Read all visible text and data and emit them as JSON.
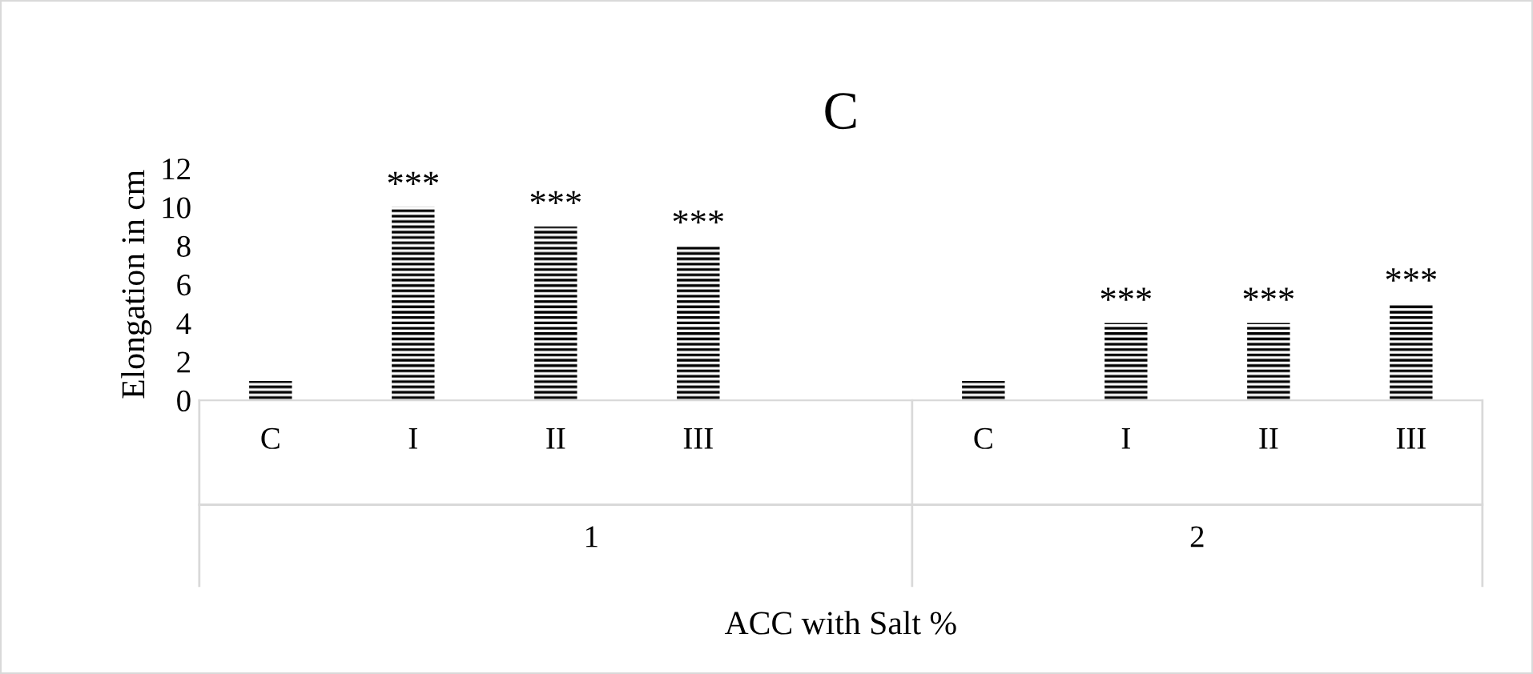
{
  "chart_data": {
    "type": "bar",
    "title": "C",
    "ylabel": "Elongation in cm",
    "xlabel": "ACC with Salt %",
    "categories": [
      "C",
      "I",
      "II",
      "III",
      null,
      "C",
      "I",
      "II",
      "III"
    ],
    "values": [
      1,
      10,
      9,
      8,
      null,
      1,
      4,
      4,
      5
    ],
    "value_labels": [
      null,
      "***",
      "***",
      "***",
      null,
      null,
      "***",
      "***",
      "***"
    ],
    "color": "#000000",
    "annotations": [
      "1",
      "2"
    ],
    "ylim": [
      0,
      12
    ],
    "yticks": [
      0,
      2,
      4,
      6,
      8,
      10,
      12
    ],
    "grid": false,
    "legend": false
  }
}
